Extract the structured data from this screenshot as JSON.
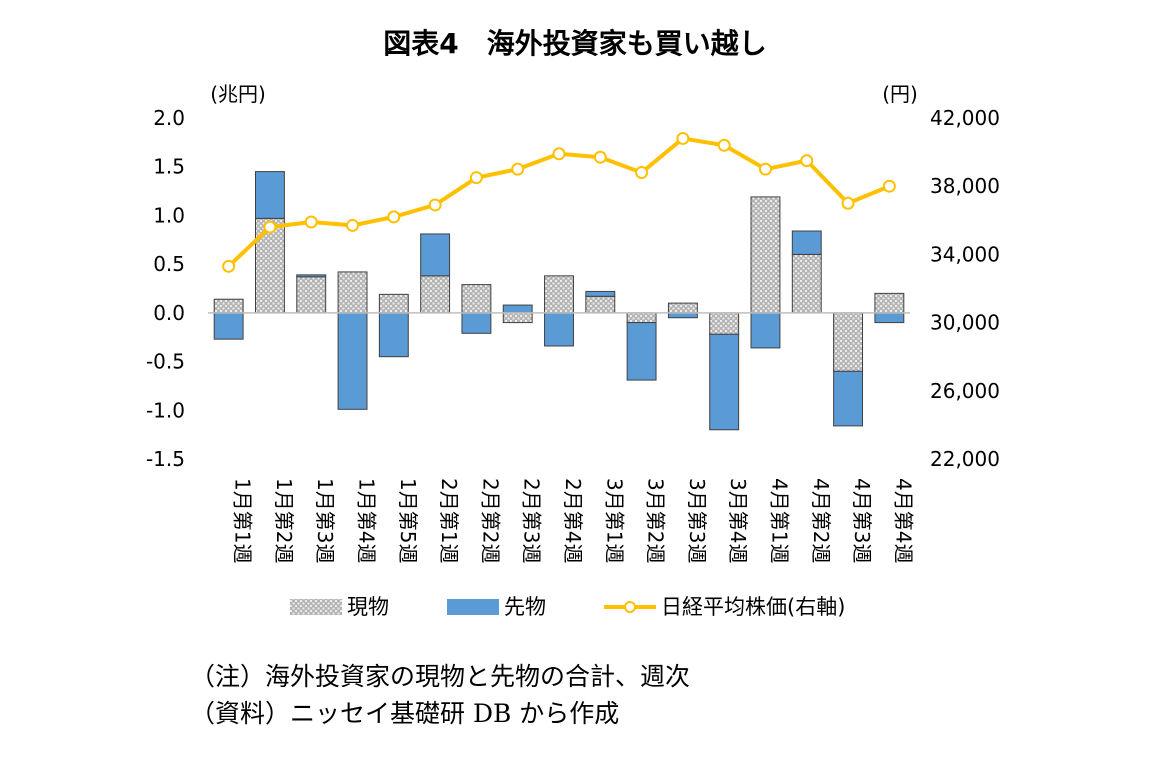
{
  "chart_data": {
    "type": "bar",
    "title": "図表4　海外投資家も買い越し",
    "left_unit": "(兆円)",
    "right_unit": "(円)",
    "categories": [
      "1月第1週",
      "1月第2週",
      "1月第3週",
      "1月第4週",
      "1月第5週",
      "2月第1週",
      "2月第2週",
      "2月第3週",
      "2月第4週",
      "3月第1週",
      "3月第2週",
      "3月第3週",
      "3月第4週",
      "4月第1週",
      "4月第2週",
      "4月第3週",
      "4月第4週"
    ],
    "series": [
      {
        "name": "現物",
        "kind": "stacked-bar",
        "axis": "left",
        "color": "#a6a6a6",
        "values": [
          0.14,
          0.97,
          0.37,
          0.42,
          0.19,
          0.38,
          0.29,
          -0.1,
          0.38,
          0.17,
          -0.1,
          0.1,
          -0.22,
          1.19,
          0.6,
          -0.6,
          0.2
        ]
      },
      {
        "name": "先物",
        "kind": "stacked-bar",
        "axis": "left",
        "color": "#5b9bd5",
        "values": [
          -0.27,
          0.48,
          0.02,
          -0.99,
          -0.45,
          0.43,
          -0.21,
          0.08,
          -0.34,
          0.05,
          -0.59,
          -0.05,
          -0.98,
          -0.36,
          0.24,
          -0.56,
          -0.1
        ]
      },
      {
        "name": "日経平均株価(右軸)",
        "kind": "line",
        "axis": "right",
        "color": "#ffc000",
        "values": [
          33300,
          35600,
          35900,
          35700,
          36200,
          36900,
          38500,
          39000,
          39900,
          39700,
          38800,
          40800,
          40400,
          39000,
          39500,
          37000,
          38000
        ]
      }
    ],
    "left_axis": {
      "min": -1.5,
      "max": 2.0,
      "ticks": [
        "2.0",
        "1.5",
        "1.0",
        "0.5",
        "0.0",
        "-0.5",
        "-1.0",
        "-1.5"
      ]
    },
    "right_axis": {
      "min": 22000,
      "max": 42000,
      "ticks": [
        "42,000",
        "38,000",
        "34,000",
        "30,000",
        "26,000",
        "22,000"
      ]
    },
    "grid": false,
    "legend": "bottom"
  },
  "notes": [
    "（注）海外投資家の現物と先物の合計、週次",
    "（資料）ニッセイ基礎研 DB から作成"
  ]
}
